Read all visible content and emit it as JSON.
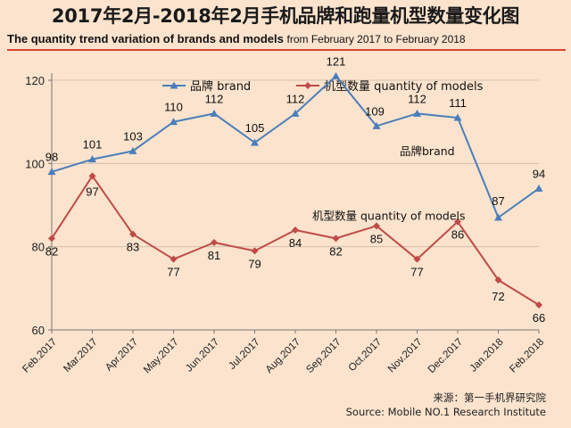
{
  "header": {
    "title": "2017年2月-2018年2月手机品牌和跑量机型数量变化图",
    "subtitle_bold": "The quantity trend variation of brands and models",
    "subtitle_rest": "from February 2017 to February 2018"
  },
  "source": {
    "cn": "来源：第一手机界研究院",
    "en": "Source: Mobile NO.1 Research Institute"
  },
  "chart_data": {
    "type": "line",
    "title": "2017年2月-2018年2月手机品牌和跑量机型数量变化图",
    "xlabel": "",
    "ylabel": "",
    "ylim": [
      60,
      120
    ],
    "yticks": [
      60,
      80,
      100,
      120
    ],
    "grid": true,
    "legend_position": "top",
    "categories": [
      "Feb.2017",
      "Mar.2017",
      "Apr.2017",
      "May.2017",
      "Jun.2017",
      "Jul.2017",
      "Aug.2017",
      "Sep.2017",
      "Oct.2017",
      "Nov.2017",
      "Dec.2017",
      "Jan.2018",
      "Feb.2018"
    ],
    "series": [
      {
        "name": "品牌 brand",
        "annotation": "品牌brand",
        "color": "#4a7ebb",
        "marker": "triangle",
        "values": [
          98,
          101,
          103,
          110,
          112,
          105,
          112,
          121,
          109,
          112,
          111,
          87,
          94
        ]
      },
      {
        "name": "机型数量 quantity of models",
        "annotation": "机型数量 quantity of models",
        "color": "#be4b48",
        "marker": "diamond",
        "values": [
          82,
          97,
          83,
          77,
          81,
          79,
          84,
          82,
          85,
          77,
          86,
          72,
          66
        ]
      }
    ]
  }
}
